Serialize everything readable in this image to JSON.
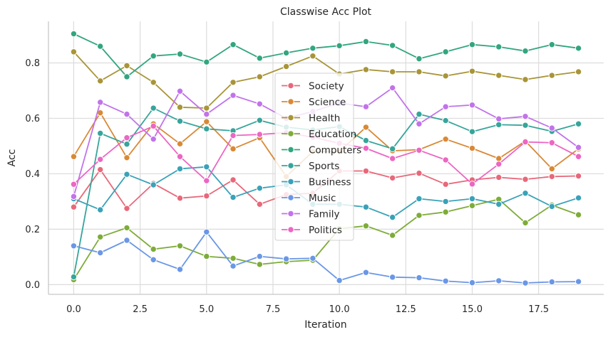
{
  "chart_data": {
    "type": "line",
    "title": "Classwise Acc Plot",
    "xlabel": "Iteration",
    "ylabel": "Acc",
    "xlim": [
      -0.95,
      19.95
    ],
    "ylim": [
      -0.035,
      0.95
    ],
    "xticks": [
      0.0,
      2.5,
      5.0,
      7.5,
      10.0,
      12.5,
      15.0,
      17.5
    ],
    "xtick_labels": [
      "0.0",
      "2.5",
      "5.0",
      "7.5",
      "10.0",
      "12.5",
      "15.0",
      "17.5"
    ],
    "yticks": [
      0.0,
      0.2,
      0.4,
      0.6,
      0.8
    ],
    "ytick_labels": [
      "0.0",
      "0.2",
      "0.4",
      "0.6",
      "0.8"
    ],
    "grid": true,
    "legend_position": "center",
    "x": [
      0,
      1,
      2,
      3,
      4,
      5,
      6,
      7,
      8,
      9,
      10,
      11,
      12,
      13,
      14,
      15,
      16,
      17,
      18,
      19
    ],
    "series": [
      {
        "name": "Society",
        "color": "#e8687a",
        "values": [
          0.28,
          0.415,
          0.275,
          0.365,
          0.312,
          0.32,
          0.378,
          0.29,
          0.325,
          0.33,
          0.41,
          0.41,
          0.385,
          0.402,
          0.362,
          0.378,
          0.387,
          0.38,
          0.39,
          0.392
        ]
      },
      {
        "name": "Science",
        "color": "#d98936",
        "values": [
          0.462,
          0.62,
          0.458,
          0.58,
          0.508,
          0.588,
          0.49,
          0.53,
          0.39,
          0.48,
          0.48,
          0.568,
          0.483,
          0.487,
          0.525,
          0.492,
          0.455,
          0.518,
          0.418,
          0.49
        ]
      },
      {
        "name": "Health",
        "color": "#a89538",
        "values": [
          0.84,
          0.735,
          0.79,
          0.73,
          0.64,
          0.637,
          0.73,
          0.75,
          0.787,
          0.825,
          0.76,
          0.776,
          0.768,
          0.768,
          0.753,
          0.77,
          0.755,
          0.74,
          0.755,
          0.768
        ]
      },
      {
        "name": "Education",
        "color": "#7eac39",
        "values": [
          0.018,
          0.172,
          0.205,
          0.128,
          0.14,
          0.102,
          0.095,
          0.073,
          0.083,
          0.088,
          0.202,
          0.212,
          0.178,
          0.25,
          0.262,
          0.285,
          0.308,
          0.223,
          0.287,
          0.252
        ]
      },
      {
        "name": "Computers",
        "color": "#32a67e",
        "values": [
          0.905,
          0.86,
          0.75,
          0.825,
          0.832,
          0.803,
          0.866,
          0.817,
          0.836,
          0.853,
          0.862,
          0.877,
          0.863,
          0.815,
          0.84,
          0.866,
          0.858,
          0.843,
          0.866,
          0.853
        ]
      },
      {
        "name": "Sports",
        "color": "#36a59b",
        "values": [
          0.028,
          0.546,
          0.507,
          0.637,
          0.59,
          0.562,
          0.555,
          0.593,
          0.568,
          0.558,
          0.57,
          0.52,
          0.49,
          0.615,
          0.592,
          0.552,
          0.577,
          0.575,
          0.553,
          0.58
        ]
      },
      {
        "name": "Business",
        "color": "#3aa2b8",
        "values": [
          0.31,
          0.27,
          0.398,
          0.36,
          0.418,
          0.425,
          0.315,
          0.348,
          0.36,
          0.29,
          0.29,
          0.28,
          0.243,
          0.31,
          0.3,
          0.31,
          0.29,
          0.33,
          0.282,
          0.313
        ]
      },
      {
        "name": "Music",
        "color": "#6a97e6",
        "values": [
          0.14,
          0.115,
          0.16,
          0.09,
          0.055,
          0.19,
          0.067,
          0.102,
          0.093,
          0.095,
          0.015,
          0.044,
          0.027,
          0.025,
          0.013,
          0.007,
          0.014,
          0.006,
          0.01,
          0.011
        ]
      },
      {
        "name": "Family",
        "color": "#c273ea",
        "values": [
          0.318,
          0.658,
          0.615,
          0.525,
          0.698,
          0.615,
          0.683,
          0.652,
          0.6,
          0.625,
          0.655,
          0.642,
          0.71,
          0.58,
          0.642,
          0.648,
          0.598,
          0.607,
          0.565,
          0.495
        ]
      },
      {
        "name": "Politics",
        "color": "#ec66c3",
        "values": [
          0.362,
          0.452,
          0.53,
          0.572,
          0.462,
          0.375,
          0.538,
          0.542,
          0.548,
          0.532,
          0.51,
          0.492,
          0.455,
          0.485,
          0.45,
          0.363,
          0.435,
          0.515,
          0.512,
          0.462
        ]
      }
    ]
  }
}
